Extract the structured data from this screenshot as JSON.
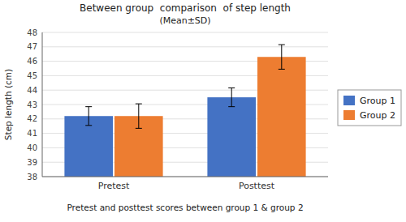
{
  "chart_data": {
    "type": "bar",
    "title": "Between group  comparison  of step length",
    "subtitle": "(Mean±SD)",
    "x_label": "Pretest and posttest scores between group 1 & group 2",
    "y_label": "Step length (cm)",
    "categories": [
      "Pretest",
      "Posttest"
    ],
    "series": [
      {
        "name": "Group 1",
        "color": "#4472C4",
        "values": [
          42.2,
          43.5
        ],
        "errors": [
          0.65,
          0.65
        ]
      },
      {
        "name": "Group 2",
        "color": "#ED7D31",
        "values": [
          42.2,
          46.3
        ],
        "errors": [
          0.85,
          0.85
        ]
      }
    ],
    "ylim": [
      38,
      48
    ],
    "yticks": [
      38,
      39,
      40,
      41,
      42,
      43,
      44,
      45,
      46,
      47,
      48
    ],
    "grid": true,
    "legend": "right"
  }
}
